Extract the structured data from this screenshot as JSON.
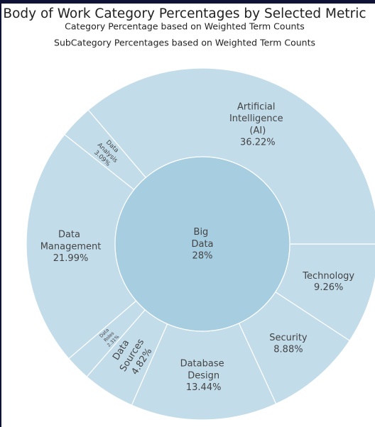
{
  "chart_data": {
    "type": "sunburst",
    "title": "Body of Work Category Percentages by Selected Metric",
    "subtitles": [
      "Category Percentage based on Weighted Term Counts",
      "SubCategory Percentages based on Weighted Term Counts"
    ],
    "center": {
      "name": "Big Data",
      "value": 28,
      "value_label": "28%",
      "color": "#a7cde1"
    },
    "categories": [
      "Technology",
      "Security",
      "Database Design",
      "Data Sources",
      "Data Roles",
      "Data Management",
      "Data Analysis",
      "Artificial Intelligence (AI)"
    ],
    "values": [
      9.26,
      8.88,
      13.44,
      4.82,
      2.31,
      21.99,
      3.09,
      36.22
    ],
    "value_labels": [
      "9.26%",
      "8.88%",
      "13.44%",
      "4.82%",
      "2.31%",
      "21.99%",
      "3.09%",
      "36.22%"
    ],
    "color": "#c2dcea"
  }
}
